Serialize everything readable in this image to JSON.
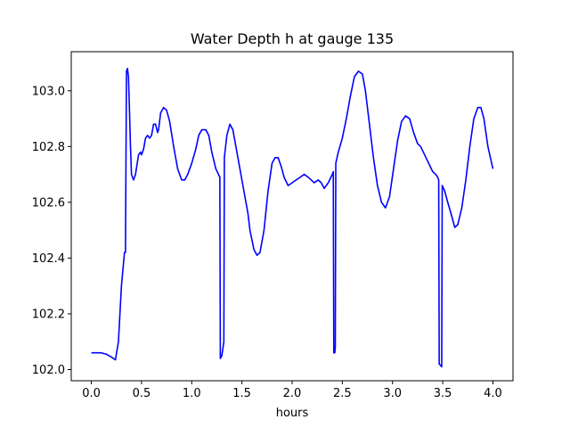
{
  "chart_data": {
    "type": "line",
    "title": "Water Depth h at gauge 135",
    "xlabel": "hours",
    "ylabel": "",
    "xlim": [
      -0.2,
      4.2
    ],
    "ylim": [
      101.96,
      103.14
    ],
    "x_ticks": [
      0.0,
      0.5,
      1.0,
      1.5,
      2.0,
      2.5,
      3.0,
      3.5,
      4.0
    ],
    "x_tick_labels": [
      "0.0",
      "0.5",
      "1.0",
      "1.5",
      "2.0",
      "2.5",
      "3.0",
      "3.5",
      "4.0"
    ],
    "y_ticks": [
      102.0,
      102.2,
      102.4,
      102.6,
      102.8,
      103.0
    ],
    "y_tick_labels": [
      "102.0",
      "102.2",
      "102.4",
      "102.6",
      "102.8",
      "103.0"
    ],
    "grid": false,
    "legend": "none",
    "series": [
      {
        "color": "#0000ff",
        "points": [
          [
            0.0,
            102.06
          ],
          [
            0.05,
            102.06
          ],
          [
            0.1,
            102.06
          ],
          [
            0.15,
            102.055
          ],
          [
            0.2,
            102.045
          ],
          [
            0.24,
            102.035
          ],
          [
            0.27,
            102.1
          ],
          [
            0.3,
            102.3
          ],
          [
            0.33,
            102.42
          ],
          [
            0.34,
            102.42
          ],
          [
            0.35,
            103.07
          ],
          [
            0.36,
            103.08
          ],
          [
            0.37,
            103.05
          ],
          [
            0.38,
            102.93
          ],
          [
            0.39,
            102.8
          ],
          [
            0.4,
            102.7
          ],
          [
            0.42,
            102.68
          ],
          [
            0.44,
            102.7
          ],
          [
            0.47,
            102.77
          ],
          [
            0.49,
            102.78
          ],
          [
            0.5,
            102.77
          ],
          [
            0.52,
            102.79
          ],
          [
            0.54,
            102.83
          ],
          [
            0.56,
            102.84
          ],
          [
            0.58,
            102.83
          ],
          [
            0.6,
            102.84
          ],
          [
            0.62,
            102.88
          ],
          [
            0.64,
            102.88
          ],
          [
            0.66,
            102.85
          ],
          [
            0.67,
            102.86
          ],
          [
            0.69,
            102.92
          ],
          [
            0.72,
            102.94
          ],
          [
            0.75,
            102.93
          ],
          [
            0.78,
            102.89
          ],
          [
            0.82,
            102.8
          ],
          [
            0.86,
            102.72
          ],
          [
            0.9,
            102.68
          ],
          [
            0.93,
            102.68
          ],
          [
            0.96,
            102.7
          ],
          [
            1.0,
            102.74
          ],
          [
            1.04,
            102.79
          ],
          [
            1.07,
            102.84
          ],
          [
            1.1,
            102.86
          ],
          [
            1.14,
            102.86
          ],
          [
            1.17,
            102.84
          ],
          [
            1.2,
            102.78
          ],
          [
            1.24,
            102.72
          ],
          [
            1.28,
            102.69
          ],
          [
            1.285,
            102.04
          ],
          [
            1.3,
            102.05
          ],
          [
            1.32,
            102.1
          ],
          [
            1.325,
            102.76
          ],
          [
            1.35,
            102.84
          ],
          [
            1.38,
            102.88
          ],
          [
            1.41,
            102.86
          ],
          [
            1.45,
            102.78
          ],
          [
            1.49,
            102.7
          ],
          [
            1.53,
            102.62
          ],
          [
            1.56,
            102.56
          ],
          [
            1.58,
            102.5
          ],
          [
            1.62,
            102.43
          ],
          [
            1.65,
            102.41
          ],
          [
            1.68,
            102.42
          ],
          [
            1.72,
            102.5
          ],
          [
            1.76,
            102.64
          ],
          [
            1.8,
            102.74
          ],
          [
            1.83,
            102.76
          ],
          [
            1.86,
            102.76
          ],
          [
            1.89,
            102.73
          ],
          [
            1.92,
            102.69
          ],
          [
            1.96,
            102.66
          ],
          [
            2.0,
            102.67
          ],
          [
            2.04,
            102.68
          ],
          [
            2.08,
            102.69
          ],
          [
            2.12,
            102.7
          ],
          [
            2.16,
            102.69
          ],
          [
            2.19,
            102.68
          ],
          [
            2.22,
            102.67
          ],
          [
            2.26,
            102.68
          ],
          [
            2.29,
            102.67
          ],
          [
            2.32,
            102.65
          ],
          [
            2.36,
            102.67
          ],
          [
            2.4,
            102.7
          ],
          [
            2.41,
            102.71
          ],
          [
            2.415,
            102.06
          ],
          [
            2.425,
            102.06
          ],
          [
            2.43,
            102.08
          ],
          [
            2.435,
            102.74
          ],
          [
            2.46,
            102.78
          ],
          [
            2.5,
            102.83
          ],
          [
            2.54,
            102.9
          ],
          [
            2.58,
            102.98
          ],
          [
            2.62,
            103.05
          ],
          [
            2.66,
            103.07
          ],
          [
            2.7,
            103.06
          ],
          [
            2.73,
            103.0
          ],
          [
            2.77,
            102.88
          ],
          [
            2.81,
            102.76
          ],
          [
            2.85,
            102.66
          ],
          [
            2.89,
            102.6
          ],
          [
            2.93,
            102.58
          ],
          [
            2.97,
            102.62
          ],
          [
            3.01,
            102.72
          ],
          [
            3.05,
            102.82
          ],
          [
            3.09,
            102.89
          ],
          [
            3.13,
            102.91
          ],
          [
            3.17,
            102.9
          ],
          [
            3.21,
            102.85
          ],
          [
            3.25,
            102.81
          ],
          [
            3.28,
            102.8
          ],
          [
            3.32,
            102.77
          ],
          [
            3.36,
            102.74
          ],
          [
            3.4,
            102.71
          ],
          [
            3.43,
            102.7
          ],
          [
            3.45,
            102.69
          ],
          [
            3.46,
            102.68
          ],
          [
            3.465,
            102.02
          ],
          [
            3.49,
            102.01
          ],
          [
            3.495,
            102.66
          ],
          [
            3.52,
            102.64
          ],
          [
            3.55,
            102.6
          ],
          [
            3.59,
            102.55
          ],
          [
            3.62,
            102.51
          ],
          [
            3.65,
            102.52
          ],
          [
            3.69,
            102.58
          ],
          [
            3.73,
            102.68
          ],
          [
            3.77,
            102.8
          ],
          [
            3.81,
            102.9
          ],
          [
            3.85,
            102.94
          ],
          [
            3.88,
            102.94
          ],
          [
            3.91,
            102.9
          ],
          [
            3.95,
            102.8
          ],
          [
            4.0,
            102.72
          ]
        ]
      }
    ]
  }
}
